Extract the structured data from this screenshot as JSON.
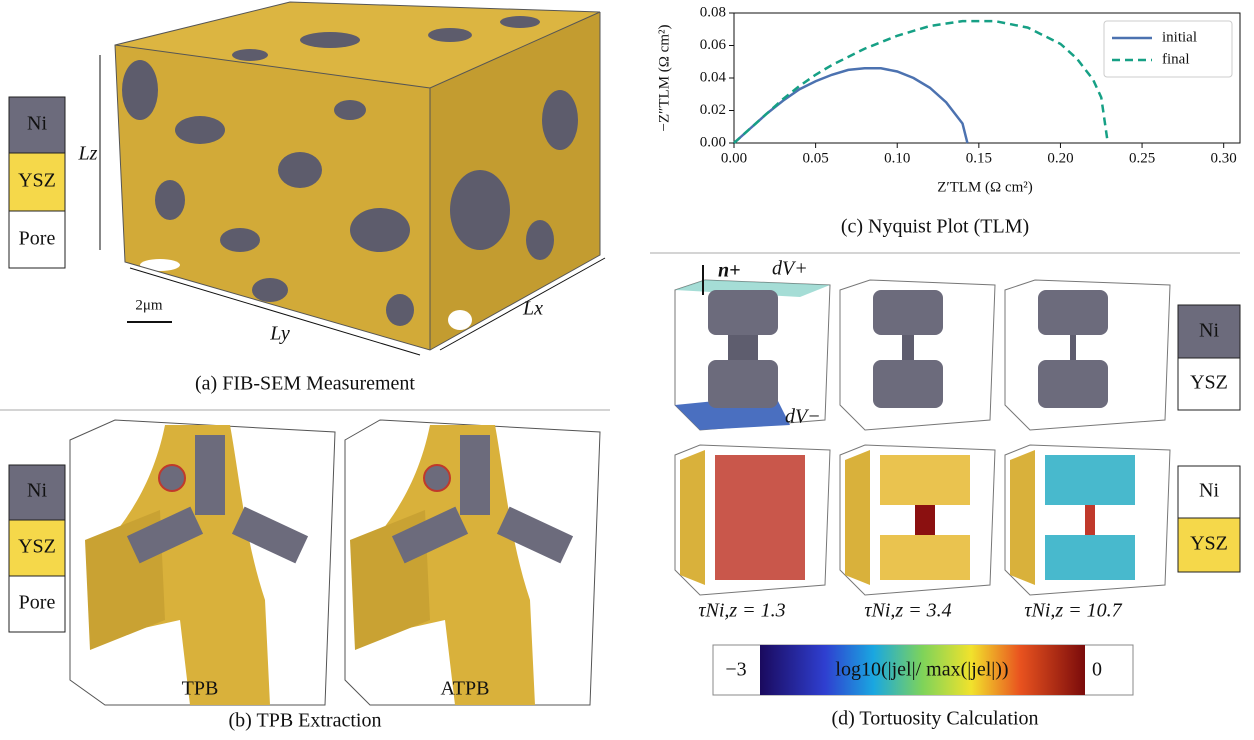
{
  "panel_a": {
    "legend": [
      "Ni",
      "YSZ",
      "Pore"
    ],
    "axis_labels": {
      "z": "Lz",
      "y": "Ly",
      "x": "Lx"
    },
    "scale_bar": "2μm",
    "caption": "(a) FIB-SEM Measurement"
  },
  "panel_b": {
    "legend": [
      "Ni",
      "YSZ",
      "Pore"
    ],
    "labels": [
      "TPB",
      "ATPB"
    ],
    "caption": "(b) TPB Extraction"
  },
  "chart_data": {
    "type": "line",
    "xlabel": "Z′TLM (Ω cm²)",
    "ylabel": "−Z″TLM (Ω cm²)",
    "caption": "(c) Nyquist Plot (TLM)",
    "xlim": [
      0,
      0.31
    ],
    "ylim": [
      0,
      0.08
    ],
    "xticks": [
      {
        "value": 0,
        "label": "0.00"
      },
      {
        "value": 0.05,
        "label": "0.05"
      },
      {
        "value": 0.1,
        "label": "0.10"
      },
      {
        "value": 0.15,
        "label": "0.15"
      },
      {
        "value": 0.2,
        "label": "0.20"
      },
      {
        "value": 0.25,
        "label": "0.25"
      },
      {
        "value": 0.3,
        "label": "0.30"
      }
    ],
    "yticks": [
      {
        "value": 0,
        "label": "0.00"
      },
      {
        "value": 0.02,
        "label": "0.02"
      },
      {
        "value": 0.04,
        "label": "0.04"
      },
      {
        "value": 0.06,
        "label": "0.06"
      },
      {
        "value": 0.08,
        "label": "0.08"
      }
    ],
    "legend_position": "upper right",
    "series": [
      {
        "name": "initial",
        "color": "#4c72b0",
        "dash": false,
        "x": [
          0,
          0.01,
          0.02,
          0.03,
          0.04,
          0.05,
          0.06,
          0.07,
          0.08,
          0.09,
          0.1,
          0.11,
          0.12,
          0.13,
          0.14,
          0.143
        ],
        "values": [
          0,
          0.009,
          0.018,
          0.026,
          0.033,
          0.038,
          0.042,
          0.045,
          0.046,
          0.046,
          0.044,
          0.04,
          0.034,
          0.025,
          0.012,
          0
        ]
      },
      {
        "name": "final",
        "color": "#16a085",
        "dash": true,
        "x": [
          0,
          0.01,
          0.02,
          0.03,
          0.04,
          0.05,
          0.06,
          0.08,
          0.1,
          0.12,
          0.14,
          0.16,
          0.18,
          0.2,
          0.21,
          0.22,
          0.225,
          0.229
        ],
        "values": [
          0,
          0.009,
          0.018,
          0.027,
          0.035,
          0.042,
          0.048,
          0.058,
          0.066,
          0.072,
          0.075,
          0.075,
          0.071,
          0.061,
          0.052,
          0.039,
          0.028,
          0
        ]
      }
    ]
  },
  "panel_d": {
    "annotations": {
      "normal": "n+",
      "top": "dV+",
      "bottom": "dV−"
    },
    "legend_top": [
      "Ni",
      "YSZ"
    ],
    "legend_bottom": [
      "Ni",
      "YSZ"
    ],
    "tortuosity": [
      "τNi,z = 1.3",
      "τNi,z = 3.4",
      "τNi,z = 10.7"
    ],
    "colorbar": {
      "min": "−3",
      "max": "0",
      "label": "log10(|jel|/ max(|jel|))"
    },
    "caption": "(d) Tortuosity Calculation"
  }
}
